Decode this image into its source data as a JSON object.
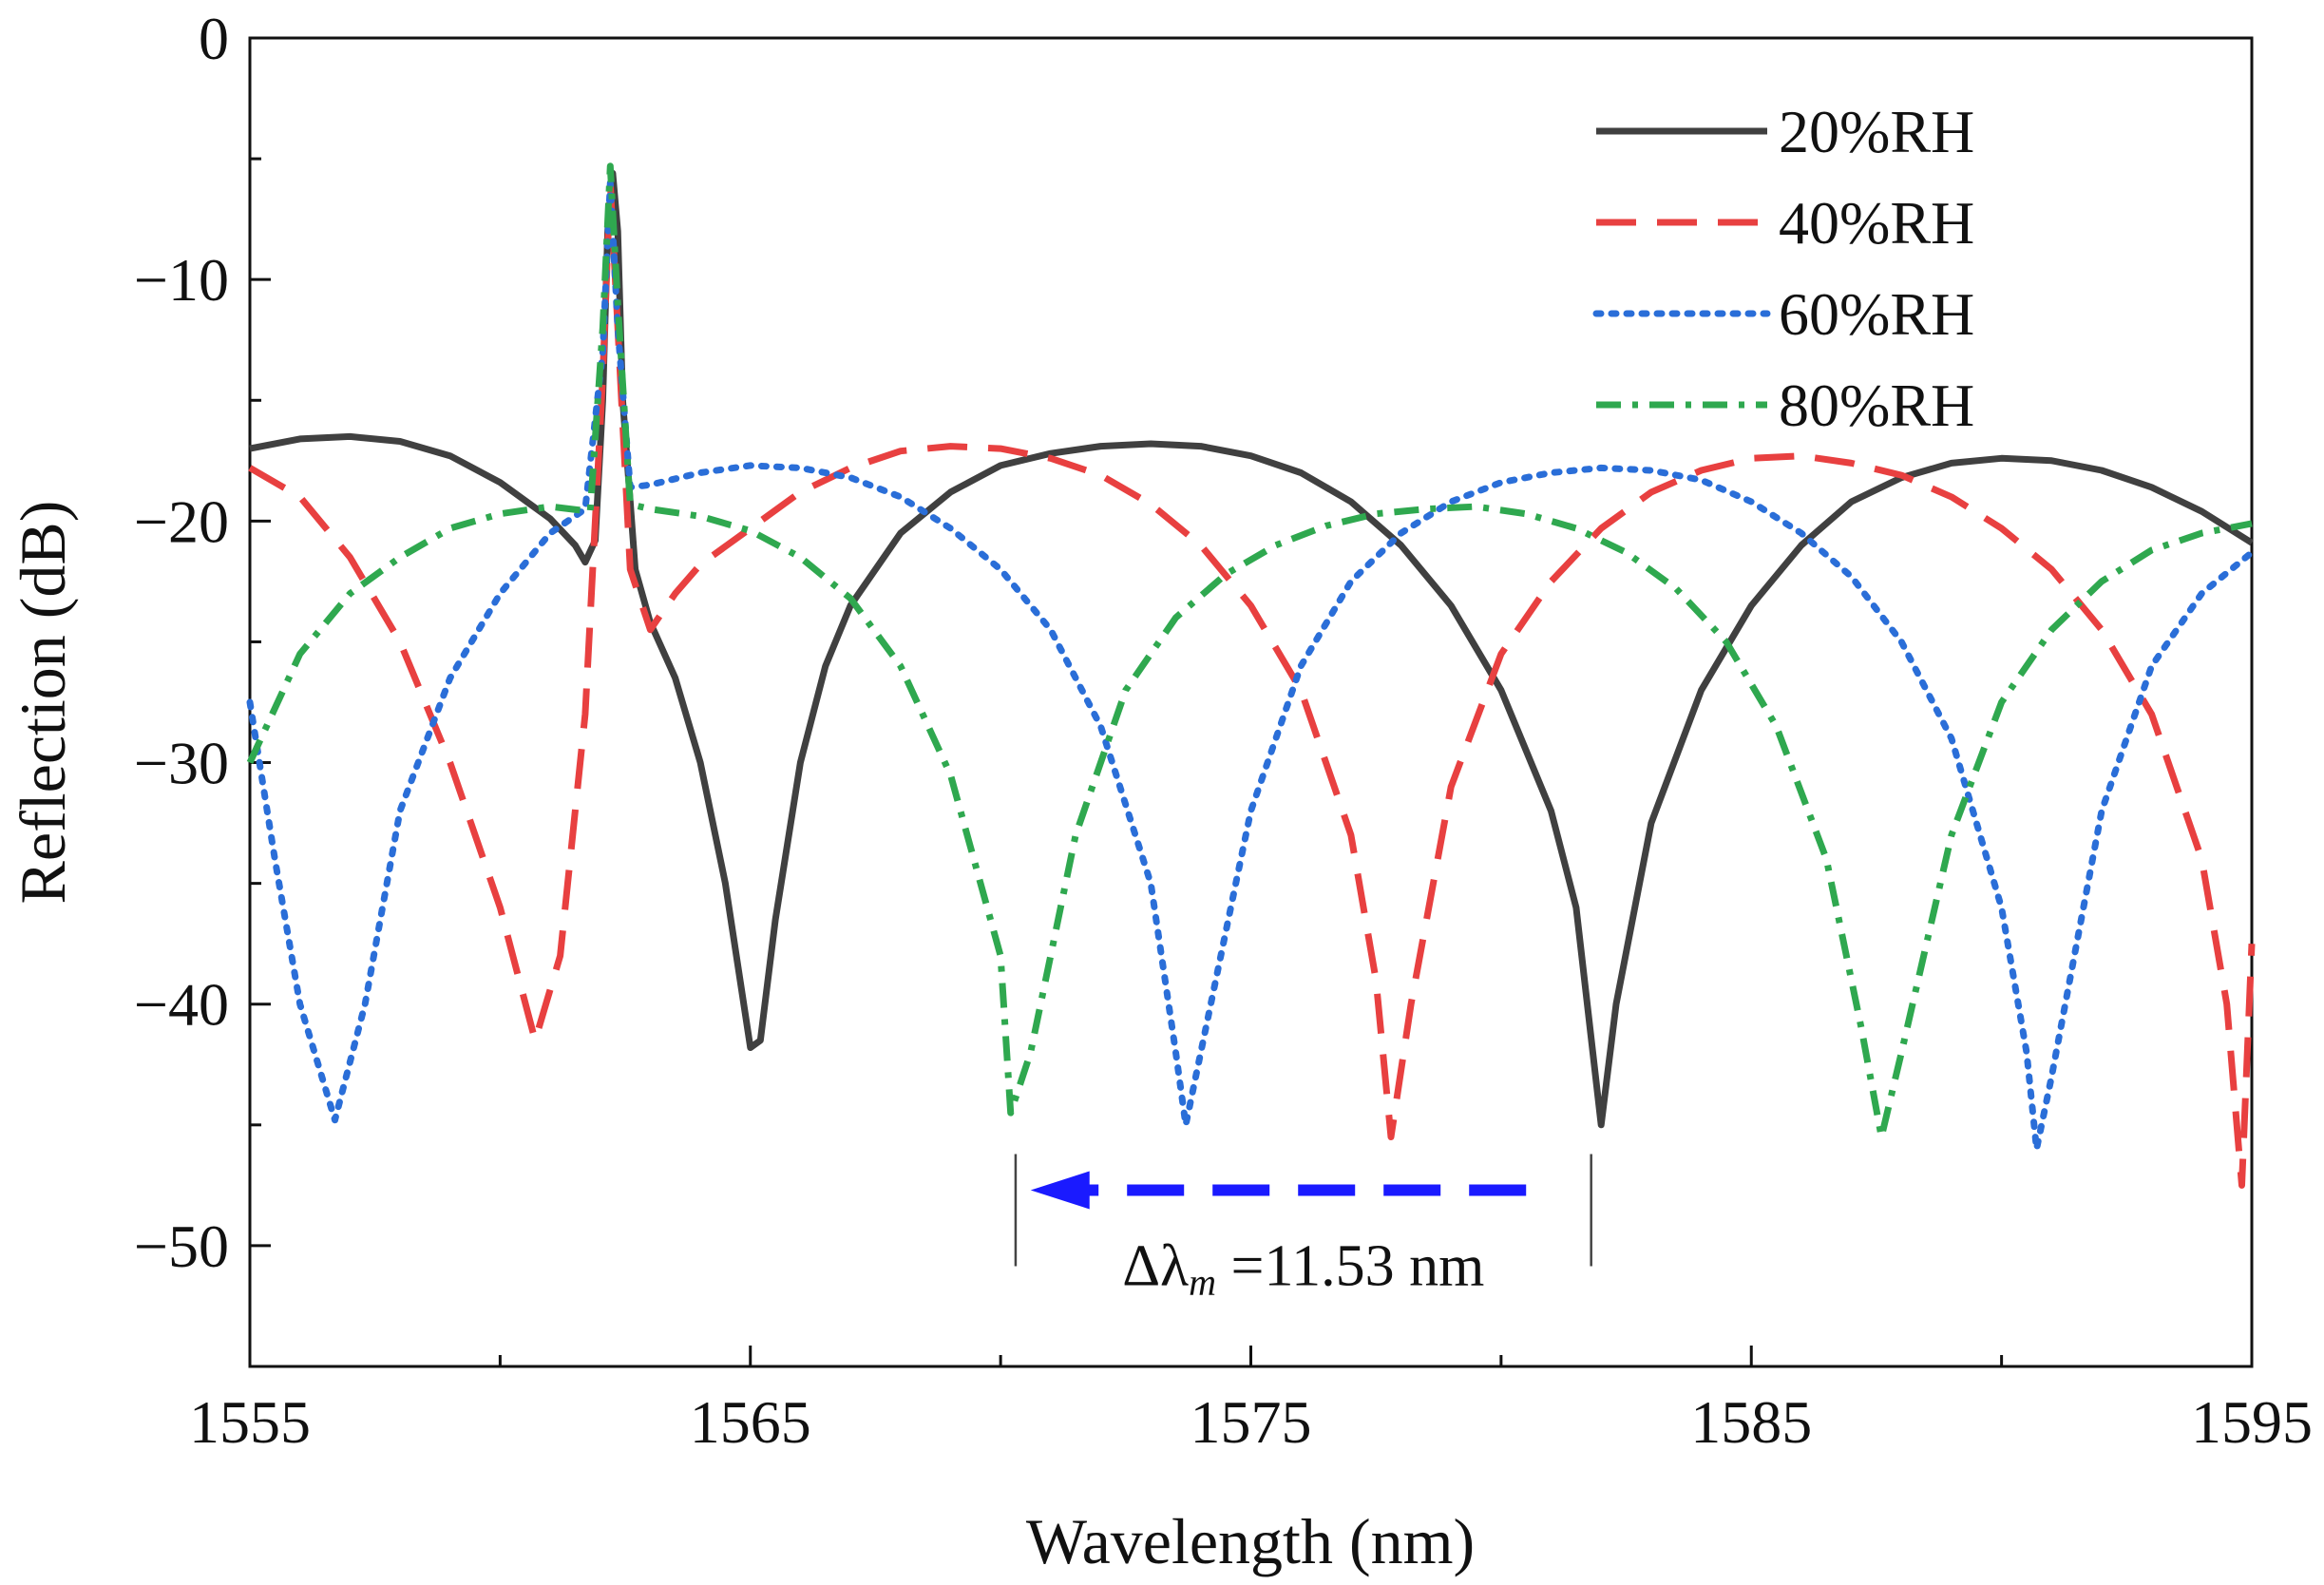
{
  "chart_data": {
    "type": "line",
    "title": "",
    "xlabel": "Wavelength (nm)",
    "ylabel": "Reflection (dB)",
    "xlim": [
      1555,
      1595
    ],
    "ylim": [
      -55,
      0
    ],
    "xticks": [
      1555,
      1565,
      1575,
      1585,
      1595
    ],
    "xtick_labels": [
      "1555",
      "1565",
      "1575",
      "1585",
      "1595"
    ],
    "yticks": [
      0,
      -10,
      -20,
      -30,
      -40,
      -50
    ],
    "ytick_labels": [
      "0",
      "−10",
      "−20",
      "−30",
      "−40",
      "−50"
    ],
    "legend_position": "top-right",
    "series": [
      {
        "name": "20%RH",
        "color": "#404040",
        "style": "solid",
        "points": [
          [
            1555,
            -17
          ],
          [
            1556,
            -16.6
          ],
          [
            1557,
            -16.5
          ],
          [
            1558,
            -16.7
          ],
          [
            1559,
            -17.3
          ],
          [
            1560,
            -18.4
          ],
          [
            1561,
            -19.9
          ],
          [
            1561.5,
            -21
          ],
          [
            1561.7,
            -21.7
          ],
          [
            1561.9,
            -20.8
          ],
          [
            1562.05,
            -15
          ],
          [
            1562.15,
            -8
          ],
          [
            1562.25,
            -5.6
          ],
          [
            1562.35,
            -8
          ],
          [
            1562.45,
            -15
          ],
          [
            1562.7,
            -22
          ],
          [
            1563,
            -24.2
          ],
          [
            1563.5,
            -26.5
          ],
          [
            1564,
            -30
          ],
          [
            1564.5,
            -35
          ],
          [
            1565,
            -41.8
          ],
          [
            1565.2,
            -41.5
          ],
          [
            1565.5,
            -36.5
          ],
          [
            1566,
            -30
          ],
          [
            1566.5,
            -26
          ],
          [
            1567,
            -23.5
          ],
          [
            1568,
            -20.5
          ],
          [
            1569,
            -18.8
          ],
          [
            1570,
            -17.7
          ],
          [
            1571,
            -17.2
          ],
          [
            1572,
            -16.9
          ],
          [
            1573,
            -16.8
          ],
          [
            1574,
            -16.9
          ],
          [
            1575,
            -17.3
          ],
          [
            1576,
            -18
          ],
          [
            1577,
            -19.2
          ],
          [
            1578,
            -21
          ],
          [
            1579,
            -23.5
          ],
          [
            1580,
            -27
          ],
          [
            1581,
            -32
          ],
          [
            1581.5,
            -36
          ],
          [
            1582,
            -45
          ],
          [
            1582.3,
            -40
          ],
          [
            1583,
            -32.5
          ],
          [
            1584,
            -27
          ],
          [
            1585,
            -23.5
          ],
          [
            1586,
            -21
          ],
          [
            1587,
            -19.2
          ],
          [
            1588,
            -18.2
          ],
          [
            1589,
            -17.6
          ],
          [
            1590,
            -17.4
          ],
          [
            1591,
            -17.5
          ],
          [
            1592,
            -17.9
          ],
          [
            1593,
            -18.6
          ],
          [
            1594,
            -19.6
          ],
          [
            1595,
            -20.9
          ]
        ]
      },
      {
        "name": "40%RH",
        "color": "#e84040",
        "style": "dashed",
        "points": [
          [
            1555,
            -17.8
          ],
          [
            1556,
            -19
          ],
          [
            1557,
            -21.5
          ],
          [
            1558,
            -25
          ],
          [
            1559,
            -30
          ],
          [
            1560,
            -36
          ],
          [
            1560.7,
            -41.5
          ],
          [
            1561.2,
            -38
          ],
          [
            1561.7,
            -28
          ],
          [
            1562.05,
            -14
          ],
          [
            1562.2,
            -6
          ],
          [
            1562.35,
            -12
          ],
          [
            1562.6,
            -22
          ],
          [
            1563,
            -24.5
          ],
          [
            1563.5,
            -23
          ],
          [
            1564,
            -21.8
          ],
          [
            1565,
            -20.3
          ],
          [
            1566,
            -18.8
          ],
          [
            1567,
            -17.8
          ],
          [
            1568,
            -17.1
          ],
          [
            1569,
            -16.9
          ],
          [
            1570,
            -17
          ],
          [
            1571,
            -17.4
          ],
          [
            1572,
            -18.1
          ],
          [
            1573,
            -19.3
          ],
          [
            1574,
            -21
          ],
          [
            1575,
            -23.5
          ],
          [
            1576,
            -27
          ],
          [
            1577,
            -33
          ],
          [
            1577.5,
            -39
          ],
          [
            1577.8,
            -45.5
          ],
          [
            1578.2,
            -40
          ],
          [
            1579,
            -31
          ],
          [
            1580,
            -25.5
          ],
          [
            1581,
            -22.5
          ],
          [
            1582,
            -20.3
          ],
          [
            1583,
            -18.8
          ],
          [
            1584,
            -17.9
          ],
          [
            1585,
            -17.4
          ],
          [
            1586,
            -17.3
          ],
          [
            1587,
            -17.6
          ],
          [
            1588,
            -18.1
          ],
          [
            1589,
            -19
          ],
          [
            1590,
            -20.3
          ],
          [
            1591,
            -22
          ],
          [
            1592,
            -24.5
          ],
          [
            1593,
            -28
          ],
          [
            1594,
            -34
          ],
          [
            1594.5,
            -40
          ],
          [
            1594.8,
            -47.5
          ],
          [
            1595,
            -37.5
          ]
        ]
      },
      {
        "name": "60%RH",
        "color": "#2a6ed8",
        "style": "dotted",
        "points": [
          [
            1555,
            -27.5
          ],
          [
            1555.5,
            -34
          ],
          [
            1556,
            -40
          ],
          [
            1556.7,
            -44.8
          ],
          [
            1557.3,
            -40
          ],
          [
            1558,
            -32
          ],
          [
            1559,
            -26.5
          ],
          [
            1560,
            -23
          ],
          [
            1561,
            -20.5
          ],
          [
            1561.7,
            -19.5
          ],
          [
            1562.05,
            -13
          ],
          [
            1562.2,
            -6
          ],
          [
            1562.35,
            -12
          ],
          [
            1562.6,
            -18.6
          ],
          [
            1563,
            -18.5
          ],
          [
            1564,
            -18
          ],
          [
            1565,
            -17.7
          ],
          [
            1566,
            -17.8
          ],
          [
            1567,
            -18.2
          ],
          [
            1568,
            -19
          ],
          [
            1569,
            -20.3
          ],
          [
            1570,
            -22
          ],
          [
            1571,
            -24.5
          ],
          [
            1572,
            -28.5
          ],
          [
            1573,
            -35
          ],
          [
            1573.5,
            -42
          ],
          [
            1573.7,
            -45
          ],
          [
            1574,
            -42
          ],
          [
            1575,
            -32
          ],
          [
            1576,
            -26
          ],
          [
            1577,
            -22.5
          ],
          [
            1578,
            -20.5
          ],
          [
            1579,
            -19.2
          ],
          [
            1580,
            -18.4
          ],
          [
            1581,
            -18
          ],
          [
            1582,
            -17.8
          ],
          [
            1583,
            -17.9
          ],
          [
            1584,
            -18.3
          ],
          [
            1585,
            -19.2
          ],
          [
            1586,
            -20.5
          ],
          [
            1587,
            -22.3
          ],
          [
            1588,
            -25
          ],
          [
            1589,
            -29
          ],
          [
            1590,
            -36
          ],
          [
            1590.5,
            -42
          ],
          [
            1590.7,
            -46
          ],
          [
            1591,
            -43
          ],
          [
            1592,
            -32
          ],
          [
            1593,
            -26
          ],
          [
            1594,
            -23
          ],
          [
            1595,
            -21.3
          ]
        ]
      },
      {
        "name": "80%RH",
        "color": "#2fa84f",
        "style": "dashdot",
        "points": [
          [
            1555,
            -30
          ],
          [
            1556,
            -25.5
          ],
          [
            1557,
            -23
          ],
          [
            1558,
            -21.5
          ],
          [
            1559,
            -20.3
          ],
          [
            1560,
            -19.7
          ],
          [
            1561,
            -19.4
          ],
          [
            1561.8,
            -19.6
          ],
          [
            1562.05,
            -12
          ],
          [
            1562.2,
            -5.3
          ],
          [
            1562.35,
            -11
          ],
          [
            1562.6,
            -19.3
          ],
          [
            1563,
            -19.5
          ],
          [
            1564,
            -19.8
          ],
          [
            1565,
            -20.4
          ],
          [
            1566,
            -21.5
          ],
          [
            1567,
            -23.2
          ],
          [
            1568,
            -26
          ],
          [
            1569,
            -30.5
          ],
          [
            1570,
            -38
          ],
          [
            1570.2,
            -44.5
          ],
          [
            1570.6,
            -42
          ],
          [
            1571.5,
            -33
          ],
          [
            1572.5,
            -27
          ],
          [
            1573.5,
            -24
          ],
          [
            1574.5,
            -22.2
          ],
          [
            1575.5,
            -21
          ],
          [
            1576.5,
            -20.2
          ],
          [
            1577.5,
            -19.7
          ],
          [
            1578.5,
            -19.5
          ],
          [
            1579.5,
            -19.4
          ],
          [
            1580.5,
            -19.7
          ],
          [
            1581.5,
            -20.3
          ],
          [
            1582.5,
            -21.3
          ],
          [
            1583.5,
            -22.8
          ],
          [
            1584.5,
            -25
          ],
          [
            1585.5,
            -28.5
          ],
          [
            1586.5,
            -34
          ],
          [
            1587.2,
            -41
          ],
          [
            1587.6,
            -45.5
          ],
          [
            1588,
            -42
          ],
          [
            1589,
            -33
          ],
          [
            1590,
            -27.5
          ],
          [
            1591,
            -24.5
          ],
          [
            1592,
            -22.5
          ],
          [
            1593,
            -21.2
          ],
          [
            1594,
            -20.5
          ],
          [
            1595,
            -20.1
          ]
        ]
      }
    ],
    "annotations": [
      {
        "type": "arrow",
        "color": "#1a1aff",
        "style": "dashed",
        "from": [
          1580.5,
          -47.7
        ],
        "to": [
          1570.6,
          -47.7
        ],
        "bracket_left": 1570.3,
        "bracket_right": 1581.8,
        "label_prefix": "Δλ",
        "label_subscript": "m",
        "label_value": " =11.53 nm"
      }
    ]
  }
}
